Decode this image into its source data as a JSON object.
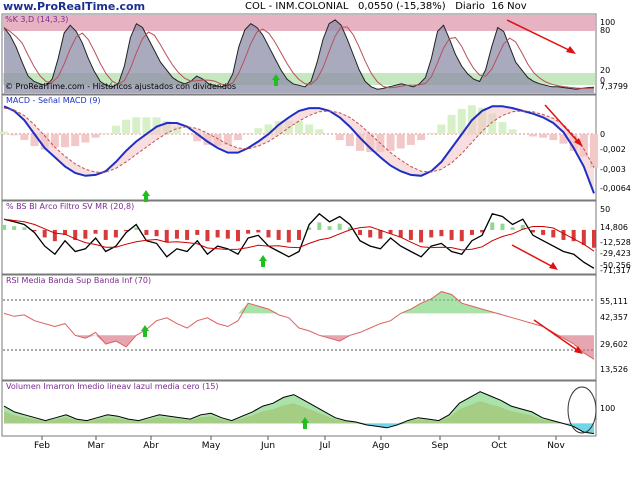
{
  "header": {
    "site": "www.ProRealTime.com",
    "ticker": "COL - INM.COLONIAL",
    "price": "0,0550 (-15,38%)",
    "period": "Diario",
    "date": "16 Nov"
  },
  "colors": {
    "frame": "#7a7a7a",
    "stoch_overbought": "#e7b3c3",
    "stoch_oversold": "#c6e8c0",
    "price_fill": "#8e8ea8",
    "macd_line": "#1f2fc6",
    "signal_line": "#c05050",
    "hist_pos": "#d8f0c8",
    "hist_neg": "#f3c8c8",
    "green_fill": "#6fd06f",
    "red_fill": "#d46a7a",
    "black_line": "#000000",
    "arrow_green": "#1fbf1f",
    "arrow_red": "#e01010",
    "orange_fill": "#f6c9a0",
    "cyan_fill": "#6fd6e8"
  },
  "x_axis": {
    "months": [
      "Feb",
      "Mar",
      "Abr",
      "May",
      "Jun",
      "Jul",
      "Ago",
      "Sep",
      "Oct",
      "Nov"
    ]
  },
  "chart_data": [
    {
      "type": "line",
      "name": "%K",
      "label": "%K 3,D (14,3,3)",
      "subtitle": "© ProRealTime.com - Históricos ajustados con dividendos",
      "ylim": [
        0,
        100
      ],
      "ticks": [
        "100",
        "80",
        "20",
        "0"
      ],
      "last_value": "7,3799",
      "x": [
        0,
        3,
        6,
        9,
        12,
        15,
        18,
        21,
        24,
        27,
        30,
        33,
        36,
        39,
        42,
        45,
        48,
        51,
        54,
        57,
        60,
        63,
        66,
        69,
        72,
        75,
        78,
        81,
        84,
        87,
        90,
        93,
        96,
        99,
        102,
        105,
        108,
        111,
        114,
        117,
        120,
        123,
        126,
        129,
        132,
        135,
        138,
        141,
        144,
        147,
        150,
        153,
        156,
        159,
        162,
        165,
        168,
        171,
        174,
        177,
        180,
        183,
        186,
        189,
        192,
        195,
        198,
        201,
        204,
        207,
        210,
        213,
        216,
        219,
        222,
        225,
        228,
        231,
        234,
        237,
        240,
        243,
        246,
        249,
        252,
        255,
        258,
        261,
        264,
        267,
        270,
        273,
        276,
        279,
        282,
        285,
        288,
        291,
        294
      ],
      "values": [
        85,
        75,
        60,
        40,
        22,
        15,
        12,
        10,
        18,
        45,
        78,
        88,
        80,
        65,
        45,
        28,
        15,
        10,
        8,
        12,
        35,
        72,
        90,
        85,
        70,
        55,
        40,
        30,
        20,
        15,
        12,
        15,
        22,
        18,
        12,
        10,
        8,
        10,
        25,
        60,
        82,
        90,
        85,
        75,
        60,
        45,
        30,
        18,
        12,
        10,
        8,
        15,
        40,
        70,
        90,
        95,
        88,
        70,
        50,
        30,
        15,
        8,
        5,
        6,
        8,
        10,
        12,
        10,
        8,
        12,
        20,
        45,
        80,
        88,
        70,
        50,
        35,
        25,
        18,
        15,
        30,
        60,
        85,
        80,
        60,
        40,
        30,
        20,
        15,
        12,
        10,
        8,
        8,
        7,
        6,
        5,
        6,
        7,
        7.38
      ]
    },
    {
      "type": "line",
      "label": "MACD - Señal MACD (9)",
      "ylim": [
        -0.007,
        0.004
      ],
      "ticks": [
        "0",
        "-0,002",
        "-0,003",
        "-0,0064"
      ],
      "series": [
        {
          "name": "MACD",
          "values": [
            0.003,
            0.0025,
            0.0015,
            0.0,
            -0.0015,
            -0.0025,
            -0.0035,
            -0.0042,
            -0.0045,
            -0.0044,
            -0.004,
            -0.003,
            -0.0018,
            -0.0008,
            0.0,
            0.0008,
            0.0012,
            0.0012,
            0.0008,
            0.0,
            -0.0008,
            -0.0015,
            -0.002,
            -0.002,
            -0.0015,
            -0.0008,
            0.0,
            0.001,
            0.0018,
            0.0025,
            0.0028,
            0.0028,
            0.0025,
            0.0018,
            0.0008,
            -0.0004,
            -0.0015,
            -0.0025,
            -0.0034,
            -0.004,
            -0.0044,
            -0.0045,
            -0.004,
            -0.003,
            -0.0015,
            0.0,
            0.0015,
            0.0025,
            0.003,
            0.003,
            0.0028,
            0.0025,
            0.0022,
            0.0018,
            0.0012,
            0.0002,
            -0.0015,
            -0.0035,
            -0.0064
          ]
        },
        {
          "name": "Señal MACD (9)",
          "values": [
            0.0028,
            0.0026,
            0.002,
            0.001,
            -0.0002,
            -0.0014,
            -0.0024,
            -0.0032,
            -0.0038,
            -0.0041,
            -0.0041,
            -0.0037,
            -0.003,
            -0.0022,
            -0.0014,
            -0.0006,
            0.0001,
            0.0006,
            0.0008,
            0.0006,
            0.0001,
            -0.0005,
            -0.0011,
            -0.0015,
            -0.0016,
            -0.0013,
            -0.0008,
            -0.0001,
            0.0007,
            0.0014,
            0.002,
            0.0024,
            0.0025,
            0.0023,
            0.0018,
            0.001,
            0.0,
            -0.001,
            -0.002,
            -0.0028,
            -0.0035,
            -0.004,
            -0.0041,
            -0.0038,
            -0.0031,
            -0.0021,
            -0.0009,
            0.0003,
            0.0013,
            0.002,
            0.0024,
            0.0025,
            0.0024,
            0.0021,
            0.0017,
            0.001,
            -0.0001,
            -0.0016,
            -0.0036
          ]
        }
      ]
    },
    {
      "type": "line",
      "label": "% BS BI Arco Filtro SV MR (20,8)",
      "ylim": [
        -80,
        50
      ],
      "ticks": [
        "50",
        "14,806",
        "-12,528",
        "-29,423",
        "-50,256",
        "-71,317"
      ],
      "values": [
        20,
        15,
        10,
        -5,
        -30,
        -45,
        -20,
        -40,
        -35,
        -15,
        -40,
        -30,
        -5,
        10,
        -20,
        -25,
        -50,
        -35,
        -40,
        -20,
        -45,
        -30,
        -35,
        -45,
        -15,
        -10,
        -30,
        -40,
        -50,
        -40,
        10,
        30,
        15,
        25,
        10,
        -20,
        -30,
        -35,
        -15,
        -30,
        -40,
        -50,
        -30,
        -25,
        -40,
        -45,
        -20,
        -10,
        30,
        25,
        10,
        20,
        -10,
        -20,
        -30,
        -40,
        -45,
        -60,
        -71.317
      ]
    },
    {
      "type": "line",
      "label": "RSI Media Banda Sup Banda Inf (70)",
      "ylim": [
        0,
        70
      ],
      "ticks": [
        "55,111",
        "42,357",
        "29,602",
        "13,526"
      ],
      "values": [
        45,
        43,
        44,
        40,
        38,
        36,
        38,
        30,
        28,
        32,
        24,
        26,
        22,
        30,
        34,
        40,
        42,
        38,
        35,
        40,
        42,
        38,
        36,
        40,
        52,
        50,
        48,
        44,
        42,
        35,
        33,
        30,
        28,
        26,
        30,
        32,
        35,
        38,
        40,
        45,
        48,
        52,
        55,
        60,
        58,
        52,
        50,
        48,
        46,
        44,
        42,
        40,
        38,
        36,
        32,
        28,
        24,
        18,
        13.526
      ]
    },
    {
      "type": "area",
      "label": "Volumen Imarron Imedio lineav lazul media cero (15)",
      "ylim": [
        -40,
        140
      ],
      "ticks": [
        "100"
      ],
      "values": [
        60,
        40,
        30,
        20,
        10,
        20,
        30,
        15,
        10,
        20,
        30,
        25,
        15,
        10,
        20,
        30,
        25,
        20,
        15,
        30,
        35,
        20,
        10,
        25,
        40,
        60,
        70,
        90,
        100,
        80,
        60,
        40,
        20,
        10,
        5,
        -5,
        -10,
        -15,
        -5,
        10,
        20,
        15,
        10,
        30,
        70,
        90,
        110,
        95,
        80,
        60,
        50,
        40,
        20,
        10,
        0,
        -10,
        -30,
        -35
      ]
    }
  ]
}
